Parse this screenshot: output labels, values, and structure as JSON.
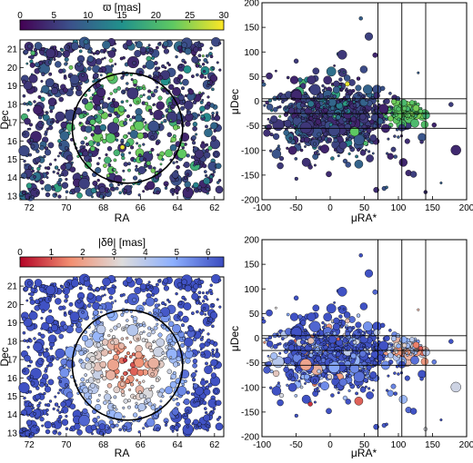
{
  "chart_data": [
    {
      "id": "parallax-sky",
      "type": "scatter",
      "xlabel": "RA",
      "ylabel": "Dec",
      "xlim": [
        72.5,
        61.5
      ],
      "ylim": [
        12.8,
        21.5
      ],
      "xticks": [
        72,
        70,
        68,
        66,
        64,
        62
      ],
      "yticks": [
        13,
        14,
        15,
        16,
        17,
        18,
        19,
        20,
        21
      ],
      "color_quantity": "parallax",
      "colorbar": {
        "label": "ϖ [mas]",
        "ticks": [
          0,
          5,
          10,
          15,
          20,
          25,
          30
        ],
        "range": [
          0,
          30
        ],
        "colormap": "viridis",
        "position": "top"
      },
      "circle": {
        "center": [
          66.7,
          16.7
        ],
        "radius_deg": 3.0,
        "style": "solid black"
      },
      "points": {
        "count": 1000,
        "distribution": "uniform",
        "description": "random"
      }
    },
    {
      "id": "parallax-pm",
      "type": "scatter",
      "xlabel": "μRA*",
      "ylabel": "μDec",
      "xlim": [
        -100,
        200
      ],
      "ylim": [
        -200,
        200
      ],
      "xticks": [
        -100,
        -50,
        0,
        50,
        100,
        150,
        200
      ],
      "yticks": [
        -200,
        -150,
        -100,
        -50,
        0,
        50,
        100,
        150,
        200
      ],
      "color_quantity": "parallax",
      "vlines": [
        70,
        105,
        140
      ],
      "hlines": [
        5,
        -25,
        -55
      ],
      "clusters": [
        {
          "center": [
            10,
            -30
          ],
          "spread": [
            40,
            30
          ],
          "colour_range": [
            3,
            12
          ]
        },
        {
          "center": [
            110,
            -25
          ],
          "spread": [
            15,
            10
          ],
          "colour_range": [
            19,
            24
          ]
        }
      ]
    },
    {
      "id": "offset-sky",
      "type": "scatter",
      "xlabel": "RA",
      "ylabel": "Dec",
      "xlim": [
        72.5,
        61.5
      ],
      "ylim": [
        12.8,
        21.5
      ],
      "xticks": [
        72,
        70,
        68,
        66,
        64,
        62
      ],
      "yticks": [
        13,
        14,
        15,
        16,
        17,
        18,
        19,
        20,
        21
      ],
      "color_quantity": "angular separation",
      "colorbar": {
        "label": "|δθ| [mas]",
        "ticks": [
          0,
          1,
          2,
          3,
          4,
          5,
          6
        ],
        "range": [
          0,
          6.5
        ],
        "colormap": "coolwarm_r",
        "position": "top"
      },
      "circle": {
        "center": [
          66.7,
          16.7
        ],
        "radius_deg": 3.0,
        "style": "solid black"
      }
    },
    {
      "id": "offset-pm",
      "type": "scatter",
      "xlabel": "μRA*",
      "ylabel": "μDec",
      "xlim": [
        -100,
        200
      ],
      "ylim": [
        -200,
        200
      ],
      "xticks": [
        -100,
        -50,
        0,
        50,
        100,
        150,
        200
      ],
      "yticks": [
        -200,
        -150,
        -100,
        -50,
        0,
        50,
        100,
        150,
        200
      ],
      "color_quantity": "angular separation",
      "vlines": [
        70,
        105,
        140
      ],
      "hlines": [
        5,
        -25,
        -55
      ]
    }
  ]
}
